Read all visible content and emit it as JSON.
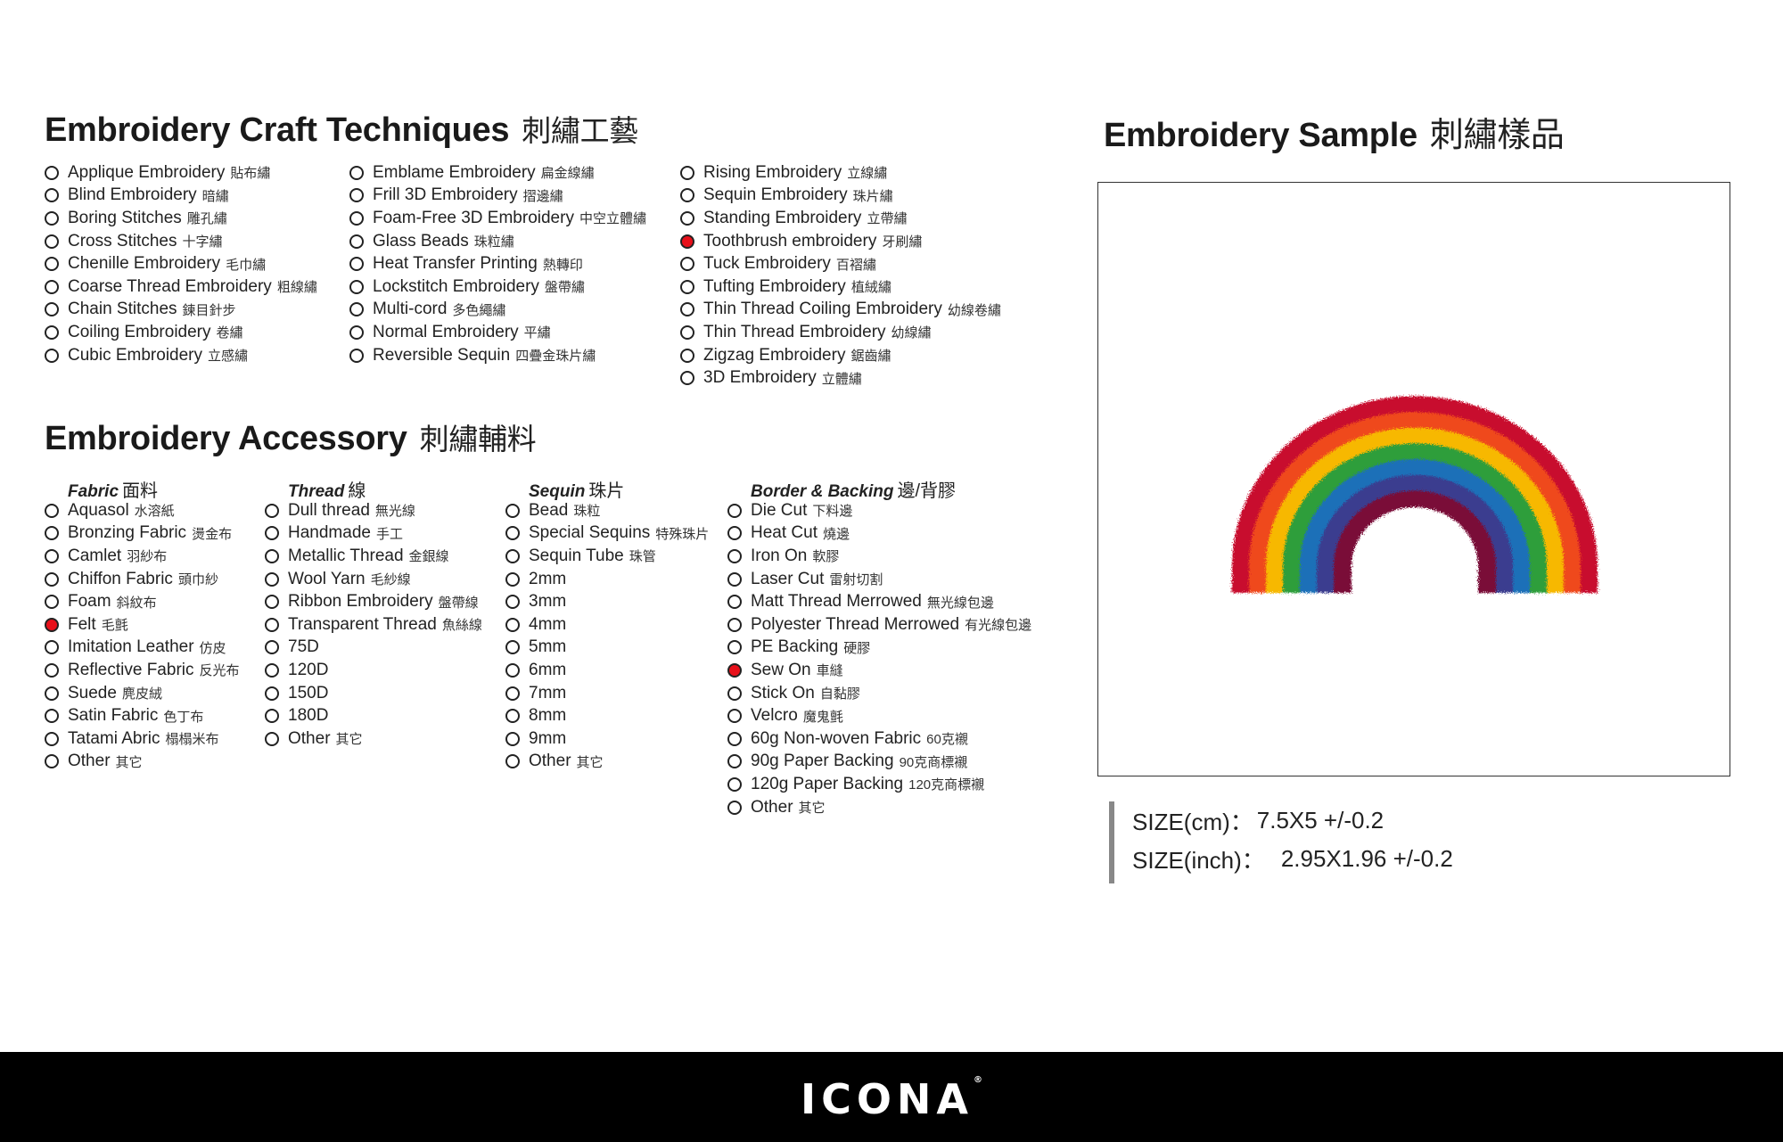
{
  "craft": {
    "title": "Embroidery Craft Techniques",
    "title_cn": "刺繡工藝",
    "columns": [
      [
        {
          "en": "Applique Embroidery",
          "cn": "貼布繡",
          "selected": false
        },
        {
          "en": "Blind Embroidery",
          "cn": "暗繡",
          "selected": false
        },
        {
          "en": "Boring Stitches",
          "cn": "雕孔繡",
          "selected": false
        },
        {
          "en": "Cross Stitches",
          "cn": "十字繡",
          "selected": false
        },
        {
          "en": "Chenille Embroidery",
          "cn": "毛巾繡",
          "selected": false
        },
        {
          "en": "Coarse Thread Embroidery",
          "cn": "粗線繡",
          "selected": false
        },
        {
          "en": "Chain Stitches",
          "cn": "鍊目針步",
          "selected": false
        },
        {
          "en": "Coiling Embroidery",
          "cn": "卷繡",
          "selected": false
        },
        {
          "en": "Cubic Embroidery",
          "cn": "立感繡",
          "selected": false
        }
      ],
      [
        {
          "en": "Emblame Embroidery",
          "cn": "扁金線繡",
          "selected": false
        },
        {
          "en": "Frill 3D Embroidery",
          "cn": "摺邊繡",
          "selected": false
        },
        {
          "en": "Foam-Free 3D Embroidery",
          "cn": "中空立體繡",
          "selected": false
        },
        {
          "en": "Glass Beads",
          "cn": "珠粒繡",
          "selected": false
        },
        {
          "en": "Heat Transfer Printing",
          "cn": "熱轉印",
          "selected": false
        },
        {
          "en": "Lockstitch Embroidery",
          "cn": "盤帶繡",
          "selected": false
        },
        {
          "en": "Multi-cord",
          "cn": "多色繩繡",
          "selected": false
        },
        {
          "en": "Normal Embroidery",
          "cn": "平繡",
          "selected": false
        },
        {
          "en": "Reversible Sequin",
          "cn": "四疊金珠片繡",
          "selected": false
        }
      ],
      [
        {
          "en": "Rising Embroidery",
          "cn": "立線繡",
          "selected": false
        },
        {
          "en": "Sequin Embroidery",
          "cn": "珠片繡",
          "selected": false
        },
        {
          "en": "Standing Embroidery",
          "cn": "立帶繡",
          "selected": false
        },
        {
          "en": "Toothbrush embroidery",
          "cn": "牙刷繡",
          "selected": true
        },
        {
          "en": "Tuck Embroidery",
          "cn": "百褶繡",
          "selected": false
        },
        {
          "en": "Tufting Embroidery",
          "cn": "植絨繡",
          "selected": false
        },
        {
          "en": "Thin Thread Coiling Embroidery",
          "cn": "幼線卷繡",
          "selected": false
        },
        {
          "en": "Thin Thread Embroidery",
          "cn": "幼線繡",
          "selected": false
        },
        {
          "en": "Zigzag Embroidery",
          "cn": "鋸齒繡",
          "selected": false
        },
        {
          "en": "3D Embroidery",
          "cn": "立體繡",
          "selected": false
        }
      ]
    ]
  },
  "accessory": {
    "title": "Embroidery Accessory",
    "title_cn": "刺繡輔料",
    "columns": [
      {
        "header_en": "Fabric",
        "header_cn": "面料",
        "items": [
          {
            "en": "Aquasol",
            "cn": "水溶紙",
            "selected": false
          },
          {
            "en": "Bronzing Fabric",
            "cn": "燙金布",
            "selected": false
          },
          {
            "en": "Camlet",
            "cn": "羽紗布",
            "selected": false
          },
          {
            "en": "Chiffon Fabric",
            "cn": "頭巾紗",
            "selected": false
          },
          {
            "en": "Foam",
            "cn": "斜紋布",
            "selected": false
          },
          {
            "en": "Felt",
            "cn": "毛氈",
            "selected": true
          },
          {
            "en": "Imitation Leather",
            "cn": "仿皮",
            "selected": false
          },
          {
            "en": "Reflective Fabric",
            "cn": "反光布",
            "selected": false
          },
          {
            "en": "Suede",
            "cn": "麂皮絨",
            "selected": false
          },
          {
            "en": "Satin Fabric",
            "cn": "色丁布",
            "selected": false
          },
          {
            "en": "Tatami Abric",
            "cn": "榻榻米布",
            "selected": false
          },
          {
            "en": "Other",
            "cn": "其它",
            "selected": false
          }
        ]
      },
      {
        "header_en": "Thread",
        "header_cn": "線",
        "items": [
          {
            "en": "Dull thread",
            "cn": "無光線",
            "selected": false
          },
          {
            "en": "Handmade",
            "cn": "手工",
            "selected": false
          },
          {
            "en": "Metallic Thread",
            "cn": "金銀線",
            "selected": false
          },
          {
            "en": "Wool Yarn",
            "cn": "毛紗線",
            "selected": false
          },
          {
            "en": "Ribbon Embroidery",
            "cn": "盤帶線",
            "selected": false
          },
          {
            "en": "Transparent Thread",
            "cn": "魚絲線",
            "selected": false
          },
          {
            "en": "75D",
            "cn": "",
            "selected": false
          },
          {
            "en": "120D",
            "cn": "",
            "selected": false
          },
          {
            "en": "150D",
            "cn": "",
            "selected": false
          },
          {
            "en": "180D",
            "cn": "",
            "selected": false
          },
          {
            "en": "Other",
            "cn": "其它",
            "selected": false
          }
        ]
      },
      {
        "header_en": "Sequin",
        "header_cn": "珠片",
        "items": [
          {
            "en": "Bead",
            "cn": "珠粒",
            "selected": false
          },
          {
            "en": "Special Sequins",
            "cn": "特殊珠片",
            "selected": false
          },
          {
            "en": "Sequin Tube",
            "cn": "珠管",
            "selected": false
          },
          {
            "en": "2mm",
            "cn": "",
            "selected": false
          },
          {
            "en": "3mm",
            "cn": "",
            "selected": false
          },
          {
            "en": "4mm",
            "cn": "",
            "selected": false
          },
          {
            "en": "5mm",
            "cn": "",
            "selected": false
          },
          {
            "en": "6mm",
            "cn": "",
            "selected": false
          },
          {
            "en": "7mm",
            "cn": "",
            "selected": false
          },
          {
            "en": "8mm",
            "cn": "",
            "selected": false
          },
          {
            "en": "9mm",
            "cn": "",
            "selected": false
          },
          {
            "en": "Other",
            "cn": "其它",
            "selected": false
          }
        ]
      },
      {
        "header_en": "Border & Backing",
        "header_cn": "邊/背膠",
        "items": [
          {
            "en": "Die Cut",
            "cn": "下料邊",
            "selected": false
          },
          {
            "en": "Heat Cut",
            "cn": "燒邊",
            "selected": false
          },
          {
            "en": "Iron On",
            "cn": "軟膠",
            "selected": false
          },
          {
            "en": "Laser Cut",
            "cn": "雷射切割",
            "selected": false
          },
          {
            "en": "Matt Thread Merrowed",
            "cn": "無光線包邊",
            "selected": false
          },
          {
            "en": "Polyester Thread Merrowed",
            "cn": "有光線包邊",
            "selected": false
          },
          {
            "en": "PE Backing",
            "cn": "硬膠",
            "selected": false
          },
          {
            "en": "Sew On",
            "cn": "車縫",
            "selected": true
          },
          {
            "en": "Stick On",
            "cn": "自黏膠",
            "selected": false
          },
          {
            "en": "Velcro",
            "cn": "魔鬼氈",
            "selected": false
          },
          {
            "en": "60g Non-woven Fabric",
            "cn": "60克襯",
            "selected": false
          },
          {
            "en": "90g Paper Backing",
            "cn": "90克商標襯",
            "selected": false
          },
          {
            "en": "120g Paper Backing",
            "cn": "120克商標襯",
            "selected": false
          },
          {
            "en": "Other",
            "cn": "其它",
            "selected": false
          }
        ]
      }
    ]
  },
  "sample": {
    "title": "Embroidery Sample",
    "title_cn": "刺繡樣品",
    "rainbow_colors": [
      "#c8102e",
      "#ef4a1f",
      "#f7b800",
      "#2e9e3b",
      "#1a6fb8",
      "#3a3c8f",
      "#7a1037"
    ],
    "size_cm_label": "SIZE(cm)：",
    "size_cm_value": "7.5X5 +/-0.2",
    "size_inch_label": "SIZE(inch)：",
    "size_inch_value": "2.95X1.96 +/-0.2"
  },
  "footer": {
    "brand": "ICONA",
    "trademark": "®"
  },
  "colors": {
    "selected": "#e8101a",
    "footer_bg": "#000000"
  }
}
